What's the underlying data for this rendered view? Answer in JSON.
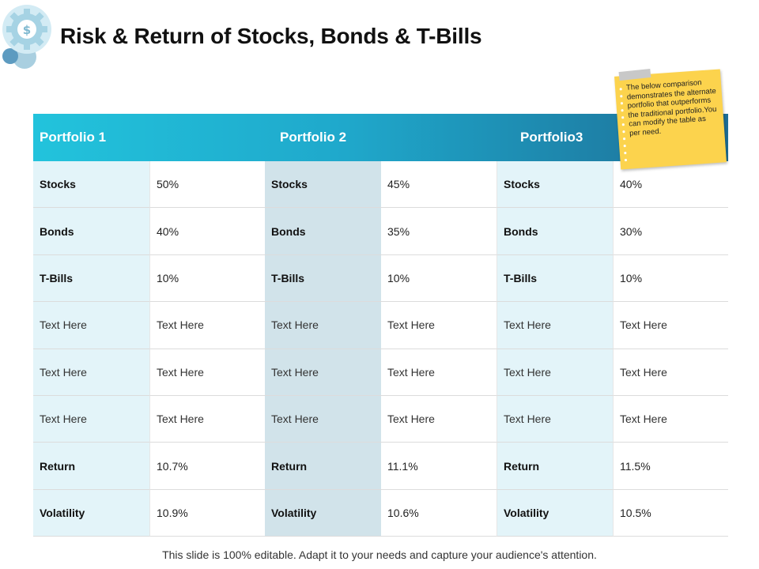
{
  "slide": {
    "title": "Risk & Return of Stocks, Bonds & T-Bills",
    "footer": "This slide is 100% editable. Adapt it to your needs and capture your audience's attention.",
    "logo_icon": "dollar-gear-icon",
    "colors": {
      "header_start": "#22c3dc",
      "header_end": "#1d6e96",
      "note": "#fcd34d"
    }
  },
  "note": {
    "text": "The below comparison demonstrates the alternate portfolio that outperforms the traditional portfolio.You can modify the table as per need."
  },
  "table": {
    "headers": [
      "Portfolio 1",
      "Portfolio 2",
      "Portfolio3"
    ],
    "rows": [
      [
        "Stocks",
        "50%",
        "Stocks",
        "45%",
        "Stocks",
        "40%"
      ],
      [
        "Bonds",
        "40%",
        "Bonds",
        "35%",
        "Bonds",
        "30%"
      ],
      [
        "T-Bills",
        "10%",
        "T-Bills",
        "10%",
        "T-Bills",
        "10%"
      ],
      [
        "Text Here",
        "Text Here",
        "Text Here",
        "Text Here",
        "Text Here",
        "Text Here"
      ],
      [
        "Text Here",
        "Text Here",
        "Text Here",
        "Text Here",
        "Text Here",
        "Text Here"
      ],
      [
        "Text Here",
        "Text Here",
        "Text Here",
        "Text Here",
        "Text Here",
        "Text Here"
      ],
      [
        "Return",
        "10.7%",
        "Return",
        "11.1%",
        "Return",
        "11.5%"
      ],
      [
        "Volatility",
        "10.9%",
        "Volatility",
        "10.6%",
        "Volatility",
        "10.5%"
      ]
    ]
  }
}
